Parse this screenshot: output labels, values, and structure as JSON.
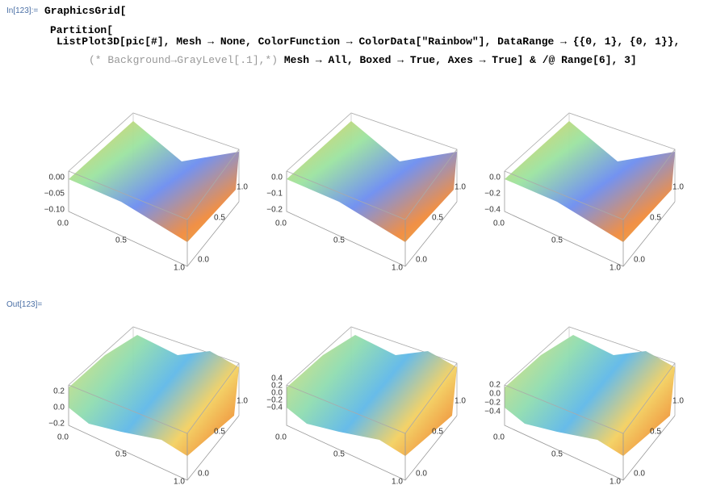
{
  "input": {
    "label": "In[123]:=",
    "lines": [
      "GraphicsGrid[",
      "Partition[",
      "ListPlot3D[pic[#], Mesh → None, ColorFunction → ColorData[\"Rainbow\"], DataRange → {{0, 1}, {0, 1}},",
      "Mesh → All, Boxed → True, Axes → True] & /@ Range[6], 3]"
    ],
    "comment": "(* Background→GrayLevel[.1],*)"
  },
  "output": {
    "label": "Out[123]="
  },
  "plots": [
    {
      "z_ticks": [
        "0.00",
        "−0.05",
        "−0.10"
      ],
      "x_ticks": [
        "0.0",
        "0.5",
        "1.0"
      ],
      "y_ticks": [
        "0.0",
        "0.5",
        "1.0"
      ]
    },
    {
      "z_ticks": [
        "0.0",
        "−0.1",
        "−0.2"
      ],
      "x_ticks": [
        "0.0",
        "0.5",
        "1.0"
      ],
      "y_ticks": [
        "0.0",
        "0.5",
        "1.0"
      ]
    },
    {
      "z_ticks": [
        "0.0",
        "−0.2",
        "−0.4"
      ],
      "x_ticks": [
        "0.0",
        "0.5",
        "1.0"
      ],
      "y_ticks": [
        "0.0",
        "0.5",
        "1.0"
      ]
    },
    {
      "z_ticks": [
        "0.2",
        "0.0",
        "−0.2"
      ],
      "x_ticks": [
        "0.0",
        "0.5",
        "1.0"
      ],
      "y_ticks": [
        "0.0",
        "0.5",
        "1.0"
      ]
    },
    {
      "z_ticks": [
        "0.4",
        "0.2",
        "0.0",
        "−0.2",
        "−0.4"
      ],
      "x_ticks": [
        "0.0",
        "0.5",
        "1.0"
      ],
      "y_ticks": [
        "0.0",
        "0.5",
        "1.0"
      ]
    },
    {
      "z_ticks": [
        "0.2",
        "0.0",
        "−0.2",
        "−0.4"
      ],
      "x_ticks": [
        "0.0",
        "0.5",
        "1.0"
      ],
      "y_ticks": [
        "0.0",
        "0.5",
        "1.0"
      ]
    }
  ]
}
